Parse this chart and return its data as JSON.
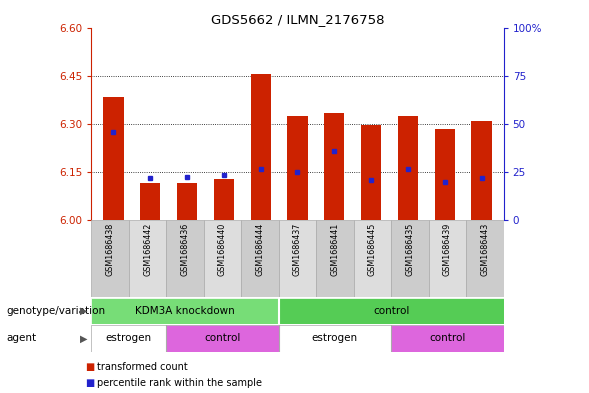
{
  "title": "GDS5662 / ILMN_2176758",
  "samples": [
    "GSM1686438",
    "GSM1686442",
    "GSM1686436",
    "GSM1686440",
    "GSM1686444",
    "GSM1686437",
    "GSM1686441",
    "GSM1686445",
    "GSM1686435",
    "GSM1686439",
    "GSM1686443"
  ],
  "bar_tops": [
    6.385,
    6.115,
    6.115,
    6.128,
    6.455,
    6.325,
    6.335,
    6.295,
    6.325,
    6.285,
    6.31
  ],
  "bar_base": 6.0,
  "blue_sq_vals": [
    6.275,
    6.13,
    6.135,
    6.14,
    6.16,
    6.15,
    6.215,
    6.125,
    6.16,
    6.12,
    6.13
  ],
  "ylim": [
    6.0,
    6.6
  ],
  "yticks_left": [
    6.0,
    6.15,
    6.3,
    6.45,
    6.6
  ],
  "yticks_right": [
    0,
    25,
    50,
    75,
    100
  ],
  "ytick_right_labels": [
    "0",
    "25",
    "50",
    "75",
    "100%"
  ],
  "grid_vals": [
    6.15,
    6.3,
    6.45
  ],
  "bar_color": "#cc2200",
  "blue_color": "#2222cc",
  "geno_groups": [
    {
      "label": "KDM3A knockdown",
      "start": 0,
      "end": 5,
      "color": "#77dd77"
    },
    {
      "label": "control",
      "start": 5,
      "end": 11,
      "color": "#55cc55"
    }
  ],
  "agent_groups": [
    {
      "label": "estrogen",
      "start": 0,
      "end": 2,
      "color": "#ffffff"
    },
    {
      "label": "control",
      "start": 2,
      "end": 5,
      "color": "#dd66dd"
    },
    {
      "label": "estrogen",
      "start": 5,
      "end": 8,
      "color": "#ffffff"
    },
    {
      "label": "control",
      "start": 8,
      "end": 11,
      "color": "#dd66dd"
    }
  ],
  "sample_box_colors": [
    "#cccccc",
    "#dddddd"
  ],
  "legend": [
    {
      "label": "transformed count",
      "color": "#cc2200"
    },
    {
      "label": "percentile rank within the sample",
      "color": "#2222cc"
    }
  ]
}
